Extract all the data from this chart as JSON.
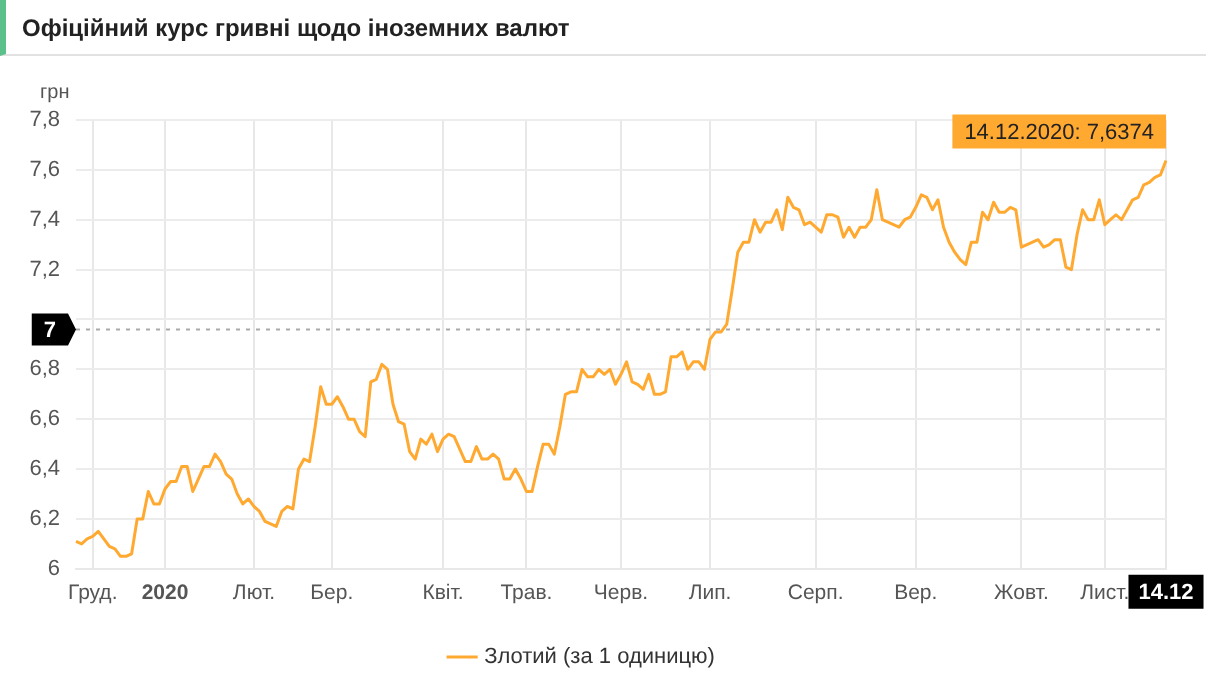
{
  "chart_data": {
    "type": "line",
    "title": "Офіційний курс гривні щодо іноземних валют",
    "ylabel": "грн",
    "categories": [
      null,
      null,
      null,
      "Груд.",
      null,
      null,
      null,
      null,
      null,
      null,
      null,
      null,
      null,
      null,
      null,
      null,
      "2020",
      null,
      null,
      null,
      null,
      null,
      null,
      null,
      null,
      null,
      null,
      null,
      null,
      null,
      null,
      null,
      "Лют.",
      null,
      null,
      null,
      null,
      null,
      null,
      null,
      null,
      null,
      null,
      null,
      null,
      null,
      "Бер.",
      null,
      null,
      null,
      null,
      null,
      null,
      null,
      null,
      null,
      null,
      null,
      null,
      null,
      null,
      null,
      null,
      null,
      null,
      null,
      "Квіт.",
      null,
      null,
      null,
      null,
      null,
      null,
      null,
      null,
      null,
      null,
      null,
      null,
      null,
      null,
      "Трав.",
      null,
      null,
      null,
      null,
      null,
      null,
      null,
      null,
      null,
      null,
      null,
      null,
      null,
      null,
      null,
      null,
      "Черв.",
      null,
      null,
      null,
      null,
      null,
      null,
      null,
      null,
      null,
      null,
      null,
      null,
      null,
      null,
      null,
      "Лип.",
      null,
      null,
      null,
      null,
      null,
      null,
      null,
      null,
      null,
      null,
      null,
      null,
      null,
      null,
      null,
      null,
      null,
      null,
      "Серп.",
      null,
      null,
      null,
      null,
      null,
      null,
      null,
      null,
      null,
      null,
      null,
      null,
      null,
      null,
      null,
      null,
      null,
      "Вер.",
      null,
      null,
      null,
      null,
      null,
      null,
      null,
      null,
      null,
      null,
      null,
      null,
      null,
      null,
      null,
      null,
      null,
      null,
      "Жовт.",
      null,
      null,
      null,
      null,
      null,
      null,
      null,
      null,
      null,
      null,
      null,
      null,
      null,
      null,
      "Лист.",
      null,
      null,
      null,
      null,
      null,
      null,
      null,
      null,
      null,
      null,
      "14.12"
    ],
    "series": [
      {
        "name": "Злотий (за 1 одиницю)",
        "color": "#ffa931",
        "values": [
          6.11,
          6.1,
          6.12,
          6.13,
          6.15,
          6.12,
          6.09,
          6.08,
          6.05,
          6.05,
          6.06,
          6.2,
          6.2,
          6.31,
          6.26,
          6.26,
          6.32,
          6.35,
          6.35,
          6.41,
          6.41,
          6.31,
          6.36,
          6.41,
          6.41,
          6.46,
          6.43,
          6.38,
          6.36,
          6.3,
          6.26,
          6.28,
          6.25,
          6.23,
          6.19,
          6.18,
          6.17,
          6.23,
          6.25,
          6.24,
          6.4,
          6.44,
          6.43,
          6.57,
          6.73,
          6.66,
          6.66,
          6.69,
          6.65,
          6.6,
          6.6,
          6.55,
          6.53,
          6.75,
          6.76,
          6.82,
          6.8,
          6.66,
          6.59,
          6.58,
          6.47,
          6.44,
          6.52,
          6.5,
          6.54,
          6.47,
          6.52,
          6.54,
          6.53,
          6.48,
          6.43,
          6.43,
          6.49,
          6.44,
          6.44,
          6.46,
          6.44,
          6.36,
          6.36,
          6.4,
          6.36,
          6.31,
          6.31,
          6.41,
          6.5,
          6.5,
          6.46,
          6.57,
          6.7,
          6.71,
          6.71,
          6.8,
          6.77,
          6.77,
          6.8,
          6.78,
          6.8,
          6.74,
          6.78,
          6.83,
          6.75,
          6.74,
          6.72,
          6.78,
          6.7,
          6.7,
          6.71,
          6.85,
          6.85,
          6.87,
          6.8,
          6.83,
          6.83,
          6.8,
          6.92,
          6.95,
          6.95,
          6.98,
          7.12,
          7.27,
          7.31,
          7.31,
          7.4,
          7.35,
          7.39,
          7.39,
          7.44,
          7.36,
          7.49,
          7.45,
          7.44,
          7.38,
          7.39,
          7.37,
          7.35,
          7.42,
          7.42,
          7.41,
          7.33,
          7.37,
          7.33,
          7.37,
          7.37,
          7.4,
          7.52,
          7.4,
          7.39,
          7.38,
          7.37,
          7.4,
          7.41,
          7.45,
          7.5,
          7.49,
          7.44,
          7.48,
          7.37,
          7.31,
          7.27,
          7.24,
          7.22,
          7.31,
          7.31,
          7.43,
          7.4,
          7.47,
          7.43,
          7.43,
          7.45,
          7.44,
          7.29,
          7.3,
          7.31,
          7.32,
          7.29,
          7.3,
          7.32,
          7.32,
          7.21,
          7.2,
          7.34,
          7.44,
          7.4,
          7.4,
          7.48,
          7.38,
          7.4,
          7.42,
          7.4,
          7.44,
          7.48,
          7.49,
          7.54,
          7.55,
          7.57,
          7.58,
          7.6374
        ]
      }
    ],
    "ylim": [
      6,
      7.8
    ],
    "yticks": [
      6,
      {
        "value": 6.2,
        "label": "6,2"
      },
      {
        "value": 6.4,
        "label": "6,4"
      },
      {
        "value": 6.6,
        "label": "6,6"
      },
      {
        "value": 6.8,
        "label": "6,8"
      },
      {
        "value": 7,
        "label": null
      },
      {
        "value": 7.2,
        "label": "7,2"
      },
      {
        "value": 7.4,
        "label": "7,4"
      },
      {
        "value": 7.6,
        "label": "7,6"
      },
      {
        "value": 7.8,
        "label": "7,8"
      }
    ],
    "grid": true,
    "legend": "bottom",
    "marker": "none",
    "line_style": "solid",
    "ref_lines": [
      {
        "axis": "y",
        "value": 6.96,
        "label": "7",
        "color": "#aaaaaa",
        "line_style": "dotted"
      }
    ],
    "annotations": [
      {
        "text": "14.12.2020: 7,6374",
        "x": "14.12",
        "y": 7.6374
      }
    ]
  }
}
